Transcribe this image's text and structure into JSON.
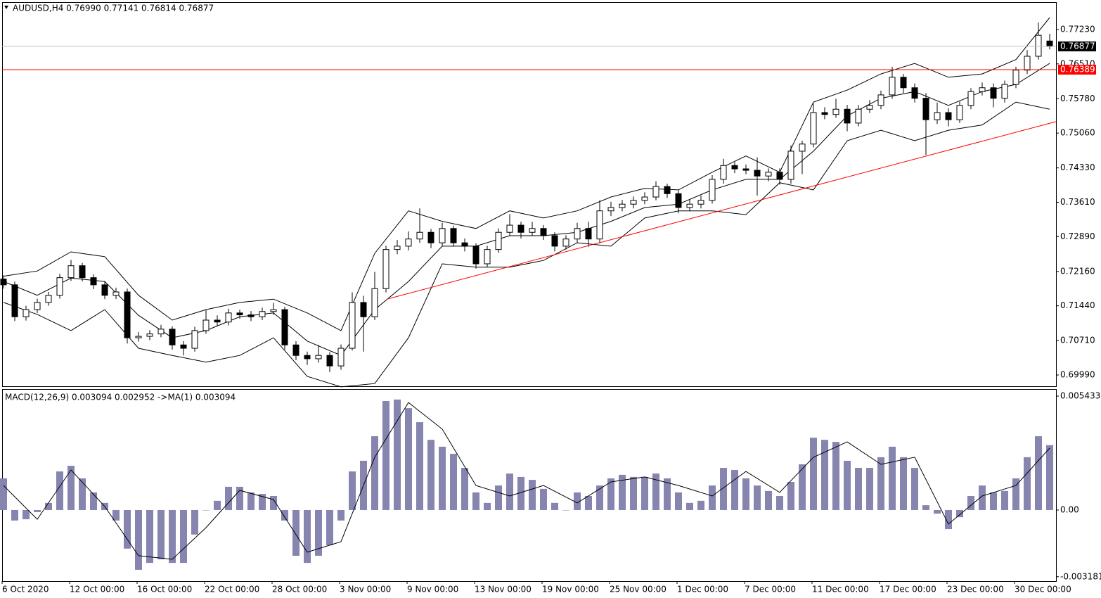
{
  "chart_data": [
    {
      "type": "candlestick",
      "header": "AUDUSD,H4  0.76990 0.77141 0.76814 0.76877",
      "xlim": [
        -0.125,
        93.5625
      ],
      "ylim": [
        0.69754,
        0.77805
      ],
      "yticks": [
        {
          "value": 0.7723,
          "label": "0.77230"
        },
        {
          "value": 0.7651,
          "label": "0.76510"
        },
        {
          "value": 0.7578,
          "label": "0.75780"
        },
        {
          "value": 0.7506,
          "label": "0.75060"
        },
        {
          "value": 0.7433,
          "label": "0.74330"
        },
        {
          "value": 0.7361,
          "label": "0.73610"
        },
        {
          "value": 0.7289,
          "label": "0.72890"
        },
        {
          "value": 0.7216,
          "label": "0.72160"
        },
        {
          "value": 0.7144,
          "label": "0.71440"
        },
        {
          "value": 0.7071,
          "label": "0.70710"
        },
        {
          "value": 0.6999,
          "label": "0.69990"
        }
      ],
      "price_line": {
        "value": 0.76877,
        "label": "0.76877",
        "color": "#c0c0c0"
      },
      "level_line": {
        "value": 0.76389,
        "label": "0.76389",
        "color": "#ff0000"
      },
      "trendline": {
        "x": [
          34.1,
          93.56
        ],
        "y": [
          0.7158,
          0.753
        ],
        "color": "#ff0000"
      },
      "candles": [
        [
          0.72,
          0.7208,
          0.718,
          0.7188
        ],
        [
          0.7188,
          0.7195,
          0.7112,
          0.7121
        ],
        [
          0.7121,
          0.7144,
          0.7113,
          0.7136
        ],
        [
          0.7136,
          0.7159,
          0.7129,
          0.7151
        ],
        [
          0.7151,
          0.7173,
          0.7144,
          0.7166
        ],
        [
          0.7166,
          0.7211,
          0.7159,
          0.7203
        ],
        [
          0.7203,
          0.724,
          0.7196,
          0.7228
        ],
        [
          0.7228,
          0.7234,
          0.7195,
          0.7203
        ],
        [
          0.7203,
          0.721,
          0.7179,
          0.7188
        ],
        [
          0.7188,
          0.7196,
          0.7158,
          0.7166
        ],
        [
          0.7166,
          0.7182,
          0.7158,
          0.7173
        ],
        [
          0.7173,
          0.718,
          0.7065,
          0.7077
        ],
        [
          0.7077,
          0.7089,
          0.7069,
          0.708
        ],
        [
          0.708,
          0.7093,
          0.7072,
          0.7085
        ],
        [
          0.7085,
          0.7104,
          0.7078,
          0.7095
        ],
        [
          0.7095,
          0.7101,
          0.7052,
          0.7062
        ],
        [
          0.7062,
          0.707,
          0.704,
          0.7055
        ],
        [
          0.7055,
          0.71,
          0.7048,
          0.7092
        ],
        [
          0.7092,
          0.7135,
          0.7085,
          0.7114
        ],
        [
          0.7114,
          0.7124,
          0.7102,
          0.711
        ],
        [
          0.711,
          0.7138,
          0.7103,
          0.7129
        ],
        [
          0.7129,
          0.7136,
          0.7117,
          0.7125
        ],
        [
          0.7125,
          0.7133,
          0.7112,
          0.7121
        ],
        [
          0.7121,
          0.714,
          0.7114,
          0.7132
        ],
        [
          0.7132,
          0.715,
          0.7125,
          0.7136
        ],
        [
          0.7136,
          0.7142,
          0.7052,
          0.7062
        ],
        [
          0.7062,
          0.707,
          0.703,
          0.704
        ],
        [
          0.704,
          0.7048,
          0.702,
          0.7033
        ],
        [
          0.7033,
          0.7062,
          0.7025,
          0.704
        ],
        [
          0.704,
          0.7047,
          0.7005,
          0.7018
        ],
        [
          0.7018,
          0.7063,
          0.701,
          0.7055
        ],
        [
          0.7055,
          0.7172,
          0.705,
          0.7151
        ],
        [
          0.7151,
          0.7165,
          0.7048,
          0.7121
        ],
        [
          0.7121,
          0.7215,
          0.7114,
          0.718
        ],
        [
          0.718,
          0.727,
          0.7172,
          0.7262
        ],
        [
          0.7262,
          0.7282,
          0.7252,
          0.7269
        ],
        [
          0.7269,
          0.73,
          0.726,
          0.7284
        ],
        [
          0.7284,
          0.7348,
          0.7276,
          0.7298
        ],
        [
          0.7298,
          0.7305,
          0.7265,
          0.7276
        ],
        [
          0.7276,
          0.7318,
          0.7268,
          0.7306
        ],
        [
          0.7306,
          0.7312,
          0.7268,
          0.7276
        ],
        [
          0.7276,
          0.7285,
          0.7258,
          0.7269
        ],
        [
          0.7269,
          0.7275,
          0.7222,
          0.7232
        ],
        [
          0.7232,
          0.727,
          0.7225,
          0.7262
        ],
        [
          0.7262,
          0.7306,
          0.7255,
          0.7298
        ],
        [
          0.7298,
          0.7336,
          0.729,
          0.7313
        ],
        [
          0.7313,
          0.732,
          0.7285,
          0.7298
        ],
        [
          0.7298,
          0.732,
          0.729,
          0.7306
        ],
        [
          0.7306,
          0.7313,
          0.7282,
          0.7291
        ],
        [
          0.7291,
          0.7298,
          0.7258,
          0.7269
        ],
        [
          0.7269,
          0.7292,
          0.7262,
          0.7284
        ],
        [
          0.7284,
          0.7318,
          0.7276,
          0.7306
        ],
        [
          0.7306,
          0.732,
          0.7268,
          0.7284
        ],
        [
          0.7284,
          0.7365,
          0.7276,
          0.7343
        ],
        [
          0.7343,
          0.7362,
          0.7332,
          0.735
        ],
        [
          0.735,
          0.7366,
          0.7342,
          0.7357
        ],
        [
          0.7357,
          0.7373,
          0.7348,
          0.7365
        ],
        [
          0.7365,
          0.7382,
          0.7357,
          0.7372
        ],
        [
          0.7372,
          0.7405,
          0.7365,
          0.7394
        ],
        [
          0.7394,
          0.74,
          0.737,
          0.7379
        ],
        [
          0.7379,
          0.7386,
          0.7338,
          0.735
        ],
        [
          0.735,
          0.7366,
          0.7342,
          0.7357
        ],
        [
          0.7357,
          0.7375,
          0.7348,
          0.7365
        ],
        [
          0.7365,
          0.7418,
          0.7358,
          0.7409
        ],
        [
          0.7409,
          0.7452,
          0.74,
          0.7438
        ],
        [
          0.7438,
          0.7445,
          0.7422,
          0.7431
        ],
        [
          0.7431,
          0.744,
          0.742,
          0.7428
        ],
        [
          0.7428,
          0.7455,
          0.7375,
          0.7416
        ],
        [
          0.7416,
          0.7432,
          0.7405,
          0.7424
        ],
        [
          0.7424,
          0.7432,
          0.7398,
          0.7409
        ],
        [
          0.7409,
          0.748,
          0.74,
          0.7468
        ],
        [
          0.7468,
          0.749,
          0.742,
          0.7483
        ],
        [
          0.7483,
          0.7568,
          0.7476,
          0.7549
        ],
        [
          0.7549,
          0.756,
          0.7535,
          0.7545
        ],
        [
          0.7545,
          0.7578,
          0.7538,
          0.7556
        ],
        [
          0.7556,
          0.7565,
          0.751,
          0.7527
        ],
        [
          0.7527,
          0.7565,
          0.752,
          0.7556
        ],
        [
          0.7556,
          0.7575,
          0.7548,
          0.7564
        ],
        [
          0.7564,
          0.7595,
          0.7556,
          0.7586
        ],
        [
          0.7586,
          0.7645,
          0.7578,
          0.7623
        ],
        [
          0.7623,
          0.763,
          0.759,
          0.7601
        ],
        [
          0.7601,
          0.761,
          0.757,
          0.7579
        ],
        [
          0.7579,
          0.759,
          0.746,
          0.7534
        ],
        [
          0.7534,
          0.757,
          0.7525,
          0.7549
        ],
        [
          0.7549,
          0.7558,
          0.752,
          0.7534
        ],
        [
          0.7534,
          0.7572,
          0.7527,
          0.7564
        ],
        [
          0.7564,
          0.76,
          0.7556,
          0.7593
        ],
        [
          0.7593,
          0.7612,
          0.7585,
          0.7601
        ],
        [
          0.7601,
          0.761,
          0.756,
          0.7579
        ],
        [
          0.7579,
          0.7616,
          0.757,
          0.7608
        ],
        [
          0.7608,
          0.7645,
          0.76,
          0.7638
        ],
        [
          0.7638,
          0.768,
          0.763,
          0.7667
        ],
        [
          0.7667,
          0.7738,
          0.766,
          0.7711
        ],
        [
          0.7699,
          0.77141,
          0.76814,
          0.76877
        ]
      ],
      "bands": {
        "color": "#000000",
        "x": [
          0,
          3,
          6,
          9,
          12,
          15,
          18,
          21,
          24,
          27,
          30,
          33,
          36,
          39,
          42,
          45,
          48,
          51,
          54,
          57,
          60,
          63,
          66,
          69,
          72,
          75,
          78,
          81,
          84,
          87,
          90,
          93
        ],
        "upper": [
          0.7206,
          0.7217,
          0.7257,
          0.7247,
          0.7166,
          0.7114,
          0.7136,
          0.7151,
          0.7158,
          0.7129,
          0.7092,
          0.7254,
          0.7343,
          0.7321,
          0.7306,
          0.7343,
          0.7328,
          0.7343,
          0.7372,
          0.739,
          0.7387,
          0.7424,
          0.7458,
          0.7424,
          0.7571,
          0.7596,
          0.763,
          0.7652,
          0.7623,
          0.763,
          0.766,
          0.7748
        ],
        "middle": [
          0.7195,
          0.7166,
          0.7202,
          0.7195,
          0.7124,
          0.7077,
          0.7092,
          0.7121,
          0.7129,
          0.707,
          0.704,
          0.7136,
          0.7195,
          0.7269,
          0.7269,
          0.7291,
          0.7291,
          0.7298,
          0.7321,
          0.735,
          0.7357,
          0.7387,
          0.7409,
          0.7409,
          0.7468,
          0.7542,
          0.7579,
          0.7593,
          0.7564,
          0.7593,
          0.7608,
          0.7652
        ],
        "lower": [
          0.7151,
          0.7126,
          0.7092,
          0.7136,
          0.7055,
          0.704,
          0.7026,
          0.704,
          0.7077,
          0.6996,
          0.6974,
          0.6981,
          0.7077,
          0.7232,
          0.7225,
          0.7225,
          0.7239,
          0.7276,
          0.7269,
          0.7328,
          0.7343,
          0.7343,
          0.7335,
          0.7402,
          0.7387,
          0.749,
          0.7512,
          0.749,
          0.7512,
          0.7523,
          0.7571,
          0.7556
        ]
      }
    },
    {
      "type": "macd",
      "legend": "MACD(12,26,9) 0.003094 0.002952  ->MA(1) 0.003094",
      "xlim": [
        -0.125,
        93.5625
      ],
      "ylim": [
        -0.00339,
        0.00577
      ],
      "yticks": [
        0.005433,
        {
          "value": 0,
          "label": "0.00"
        },
        -0.003181
      ],
      "xticks": [
        {
          "value": -0.125,
          "label": "6 Oct 2020"
        },
        {
          "value": 5.875,
          "label": "12 Oct 00:00"
        },
        {
          "value": 11.875,
          "label": "16 Oct 00:00"
        },
        {
          "value": 17.875,
          "label": "22 Oct 00:00"
        },
        {
          "value": 23.875,
          "label": "28 Oct 00:00"
        },
        {
          "value": 29.875,
          "label": "3 Nov 00:00"
        },
        {
          "value": 35.875,
          "label": "9 Nov 00:00"
        },
        {
          "value": 41.875,
          "label": "13 Nov 00:00"
        },
        {
          "value": 47.875,
          "label": "19 Nov 00:00"
        },
        {
          "value": 53.875,
          "label": "25 Nov 00:00"
        },
        {
          "value": 59.875,
          "label": "1 Dec 00:00"
        },
        {
          "value": 65.875,
          "label": "7 Dec 00:00"
        },
        {
          "value": 71.875,
          "label": "11 Dec 00:00"
        },
        {
          "value": 77.875,
          "label": "17 Dec 00:00"
        },
        {
          "value": 83.875,
          "label": "23 Dec 00:00"
        },
        {
          "value": 89.875,
          "label": "30 Dec 00:00"
        }
      ],
      "histogram": {
        "color": "#8585b0",
        "values": [
          0.00151,
          -0.0005,
          -0.00044,
          -0.0001,
          0.00034,
          0.00184,
          0.00211,
          0.00151,
          0.00084,
          0.00034,
          -0.0005,
          -0.00184,
          -0.00285,
          -0.00252,
          -0.00235,
          -0.00252,
          -0.00252,
          -0.00117,
          0,
          0.00044,
          0.00111,
          0.00111,
          0.00084,
          0.00077,
          0.00067,
          -0.0005,
          -0.00218,
          -0.00252,
          -0.00218,
          -0.00168,
          -0.0005,
          0.00184,
          0.00235,
          0.00352,
          0.0052,
          0.00527,
          0.00486,
          0.00419,
          0.00335,
          0.00302,
          0.00268,
          0.00201,
          0.00084,
          0.00034,
          0.00117,
          0.00174,
          0.00158,
          0.00144,
          0.00101,
          0.00034,
          0,
          0.00084,
          0.00067,
          0.00117,
          0.00151,
          0.00168,
          0.00158,
          0.00158,
          0.00174,
          0.00151,
          0.00084,
          0.00034,
          0.00044,
          0.00117,
          0.00201,
          0.00191,
          0.00151,
          0.00117,
          0.00091,
          0.00067,
          0.00134,
          0.00218,
          0.00345,
          0.00335,
          0.00325,
          0.00235,
          0.00201,
          0.00201,
          0.00252,
          0.00302,
          0.00252,
          0.00201,
          0.00023,
          -0.00017,
          -0.00091,
          -0.00034,
          0.00067,
          0.00117,
          0.00084,
          0.00091,
          0.00151,
          0.00252,
          0.00352,
          0.003094
        ]
      },
      "signal": {
        "color": "#000000",
        "x": [
          0,
          3,
          6,
          9,
          12,
          15,
          18,
          21,
          24,
          27,
          30,
          33,
          36,
          39,
          42,
          45,
          48,
          51,
          54,
          57,
          60,
          63,
          66,
          69,
          72,
          75,
          78,
          81,
          84,
          87,
          90,
          93
        ],
        "values": [
          0.00117,
          -0.00044,
          0.00191,
          0.00017,
          -0.00218,
          -0.00235,
          -0.00084,
          0.00094,
          0.0005,
          -0.00201,
          -0.00151,
          0.00252,
          0.00513,
          0.00386,
          0.00117,
          0.00067,
          0.00117,
          0.00034,
          0.00134,
          0.00158,
          0.00117,
          0.00067,
          0.00184,
          0.00084,
          0.00252,
          0.00325,
          0.00218,
          0.00252,
          -0.00067,
          0.00067,
          0.00117,
          0.002952
        ]
      }
    }
  ]
}
